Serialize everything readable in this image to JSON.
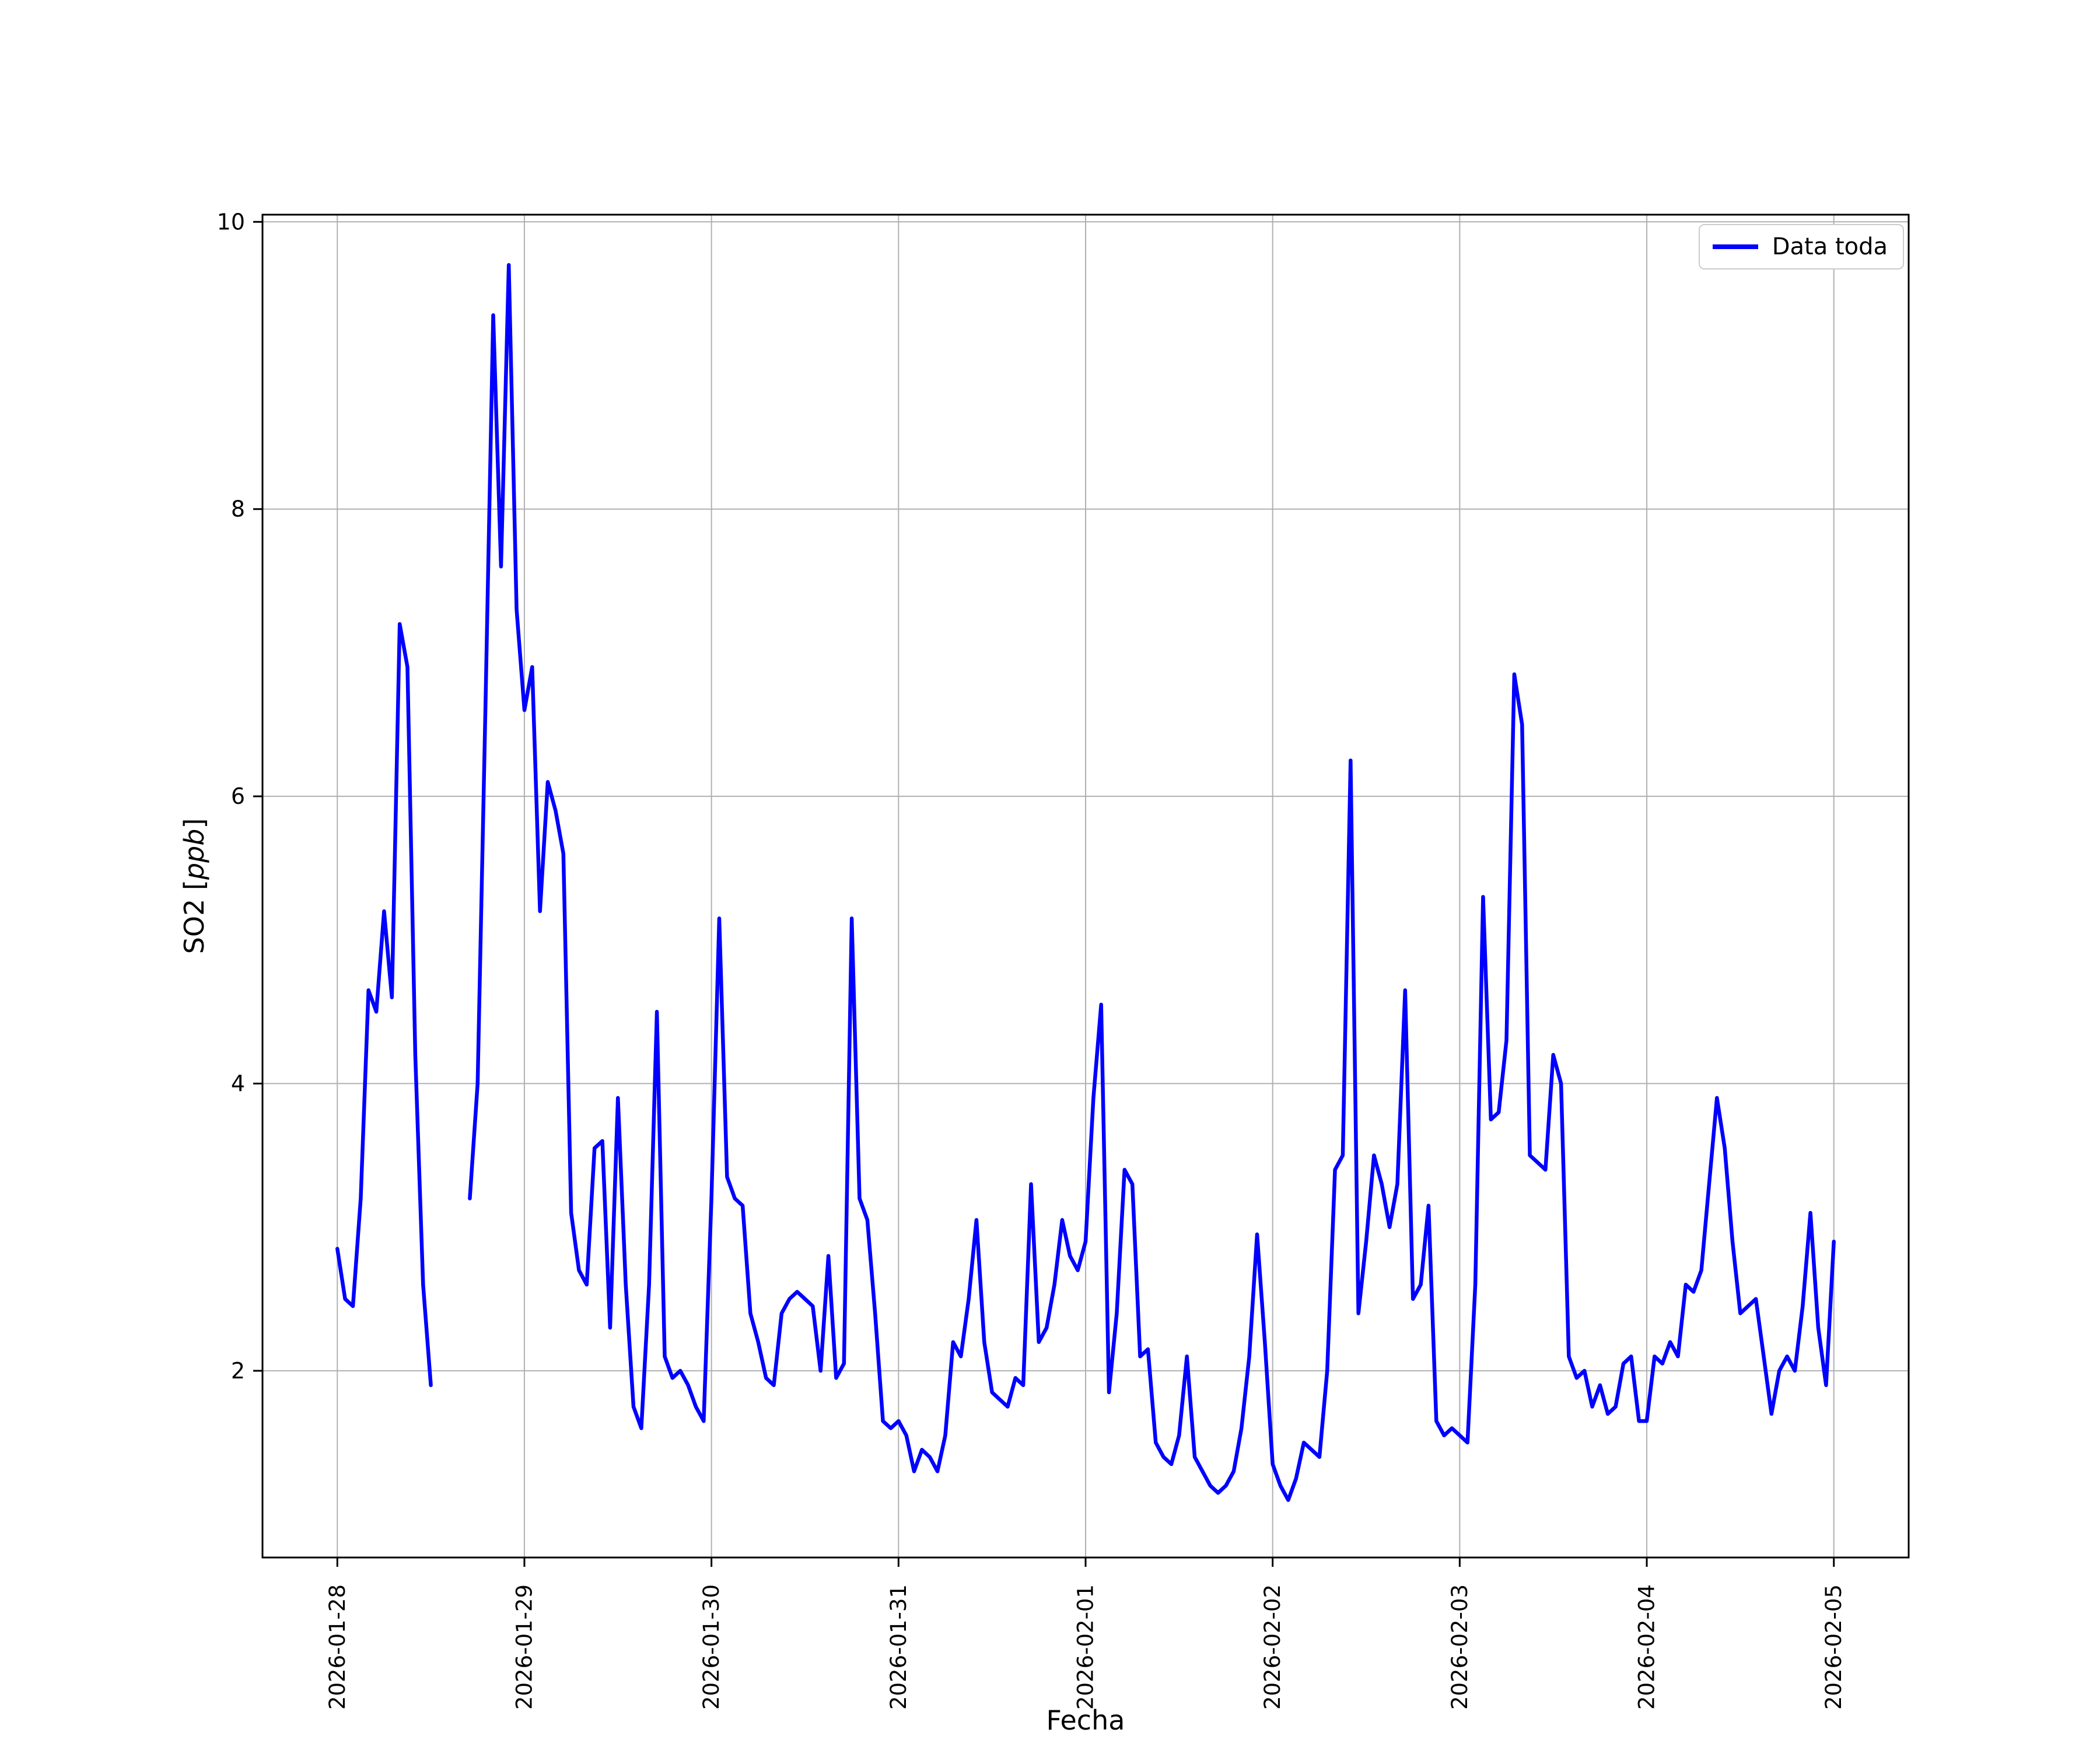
{
  "figure": {
    "xlabel": "Fecha",
    "ylabel_prefix": "SO2 [",
    "ylabel_italic": "ppb",
    "ylabel_suffix": "]",
    "legend": {
      "label": "Data toda"
    }
  },
  "chart_data": {
    "type": "line",
    "title": "",
    "xlabel": "Fecha",
    "ylabel": "SO2 [ppb]",
    "legend_position": "upper right",
    "grid": true,
    "grid_color": "#b0b0b0",
    "line_color": "#0000ff",
    "x_start": "2026-01-28 00:00",
    "x_step_hours": 1,
    "xtick_labels": [
      "2026-01-28",
      "2026-01-29",
      "2026-01-30",
      "2026-01-31",
      "2026-02-01",
      "2026-02-02",
      "2026-02-03",
      "2026-02-04",
      "2026-02-05"
    ],
    "ytick_values": [
      2,
      4,
      6,
      8,
      10
    ],
    "xlim_days": [
      -0.4,
      8.4
    ],
    "ylim": [
      0.7,
      10.05
    ],
    "series": [
      {
        "name": "Data toda",
        "values": [
          2.85,
          2.5,
          2.45,
          3.2,
          4.65,
          4.5,
          5.2,
          4.6,
          7.2,
          6.9,
          4.2,
          2.6,
          1.9,
          null,
          null,
          null,
          null,
          3.2,
          4.0,
          6.6,
          9.35,
          7.6,
          9.7,
          7.3,
          6.6,
          6.9,
          5.2,
          6.1,
          5.9,
          5.6,
          3.1,
          2.7,
          2.6,
          3.55,
          3.6,
          2.3,
          3.9,
          2.6,
          1.75,
          1.6,
          2.6,
          4.5,
          2.1,
          1.95,
          2.0,
          1.9,
          1.75,
          1.65,
          3.2,
          5.15,
          3.35,
          3.2,
          3.15,
          2.4,
          2.2,
          1.95,
          1.9,
          2.4,
          2.5,
          2.55,
          2.5,
          2.45,
          2.0,
          2.8,
          1.95,
          2.05,
          5.15,
          3.2,
          3.05,
          2.4,
          1.65,
          1.6,
          1.65,
          1.55,
          1.3,
          1.45,
          1.4,
          1.3,
          1.55,
          2.2,
          2.1,
          2.5,
          3.05,
          2.2,
          1.85,
          1.8,
          1.75,
          1.95,
          1.9,
          3.3,
          2.2,
          2.3,
          2.6,
          3.05,
          2.8,
          2.7,
          2.9,
          3.9,
          4.55,
          1.85,
          2.4,
          3.4,
          3.3,
          2.1,
          2.15,
          1.5,
          1.4,
          1.35,
          1.55,
          2.1,
          1.4,
          1.3,
          1.2,
          1.15,
          1.2,
          1.3,
          1.6,
          2.1,
          2.95,
          2.2,
          1.35,
          1.2,
          1.1,
          1.25,
          1.5,
          1.45,
          1.4,
          2.0,
          3.4,
          3.5,
          6.25,
          2.4,
          2.9,
          3.5,
          3.3,
          3.0,
          3.3,
          4.65,
          2.5,
          2.6,
          3.15,
          1.65,
          1.55,
          1.6,
          1.55,
          1.5,
          2.6,
          5.3,
          3.75,
          3.8,
          4.3,
          6.85,
          6.5,
          3.5,
          3.45,
          3.4,
          4.2,
          4.0,
          2.1,
          1.95,
          2.0,
          1.75,
          1.9,
          1.7,
          1.75,
          2.05,
          2.1,
          1.65,
          1.65,
          2.1,
          2.05,
          2.2,
          2.1,
          2.6,
          2.55,
          2.7,
          3.3,
          3.9,
          3.55,
          2.9,
          2.4,
          2.45,
          2.5,
          2.1,
          1.7,
          2.0,
          2.1,
          2.0,
          2.45,
          3.1,
          2.3,
          1.9,
          2.9
        ]
      }
    ]
  }
}
